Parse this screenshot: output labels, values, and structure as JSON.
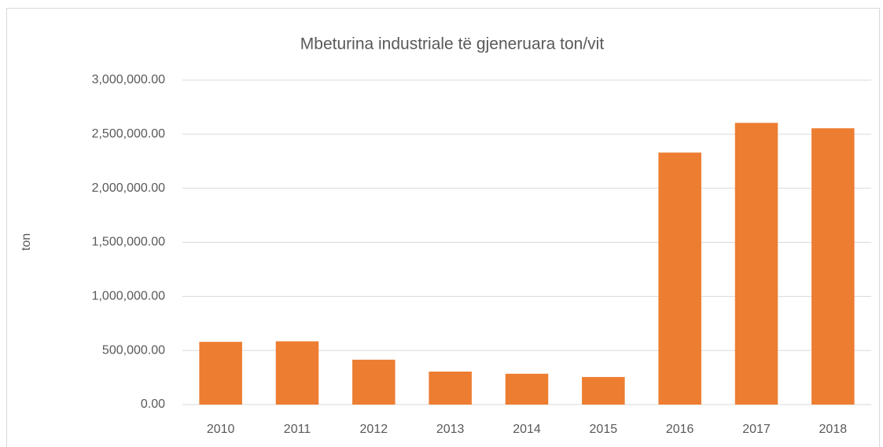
{
  "chart_data": {
    "type": "bar",
    "title": "Mbeturina industriale të gjeneruara ton/vit",
    "y_label": "ton",
    "categories": [
      "2010",
      "2011",
      "2012",
      "2013",
      "2014",
      "2015",
      "2016",
      "2017",
      "2018"
    ],
    "values": [
      580000,
      585000,
      415000,
      305000,
      285000,
      255000,
      2330000,
      2605000,
      2555000
    ],
    "color": "#ed7d31",
    "ylim": [
      0,
      3000000
    ],
    "yticks": [
      {
        "value": 0,
        "label": "0.00"
      },
      {
        "value": 500000,
        "label": "500,000.00"
      },
      {
        "value": 1000000,
        "label": "1,000,000.00"
      },
      {
        "value": 1500000,
        "label": "1,500,000.00"
      },
      {
        "value": 2000000,
        "label": "2,000,000.00"
      },
      {
        "value": 2500000,
        "label": "2,500,000.00"
      },
      {
        "value": 3000000,
        "label": "3,000,000.00"
      }
    ],
    "grid": true
  }
}
